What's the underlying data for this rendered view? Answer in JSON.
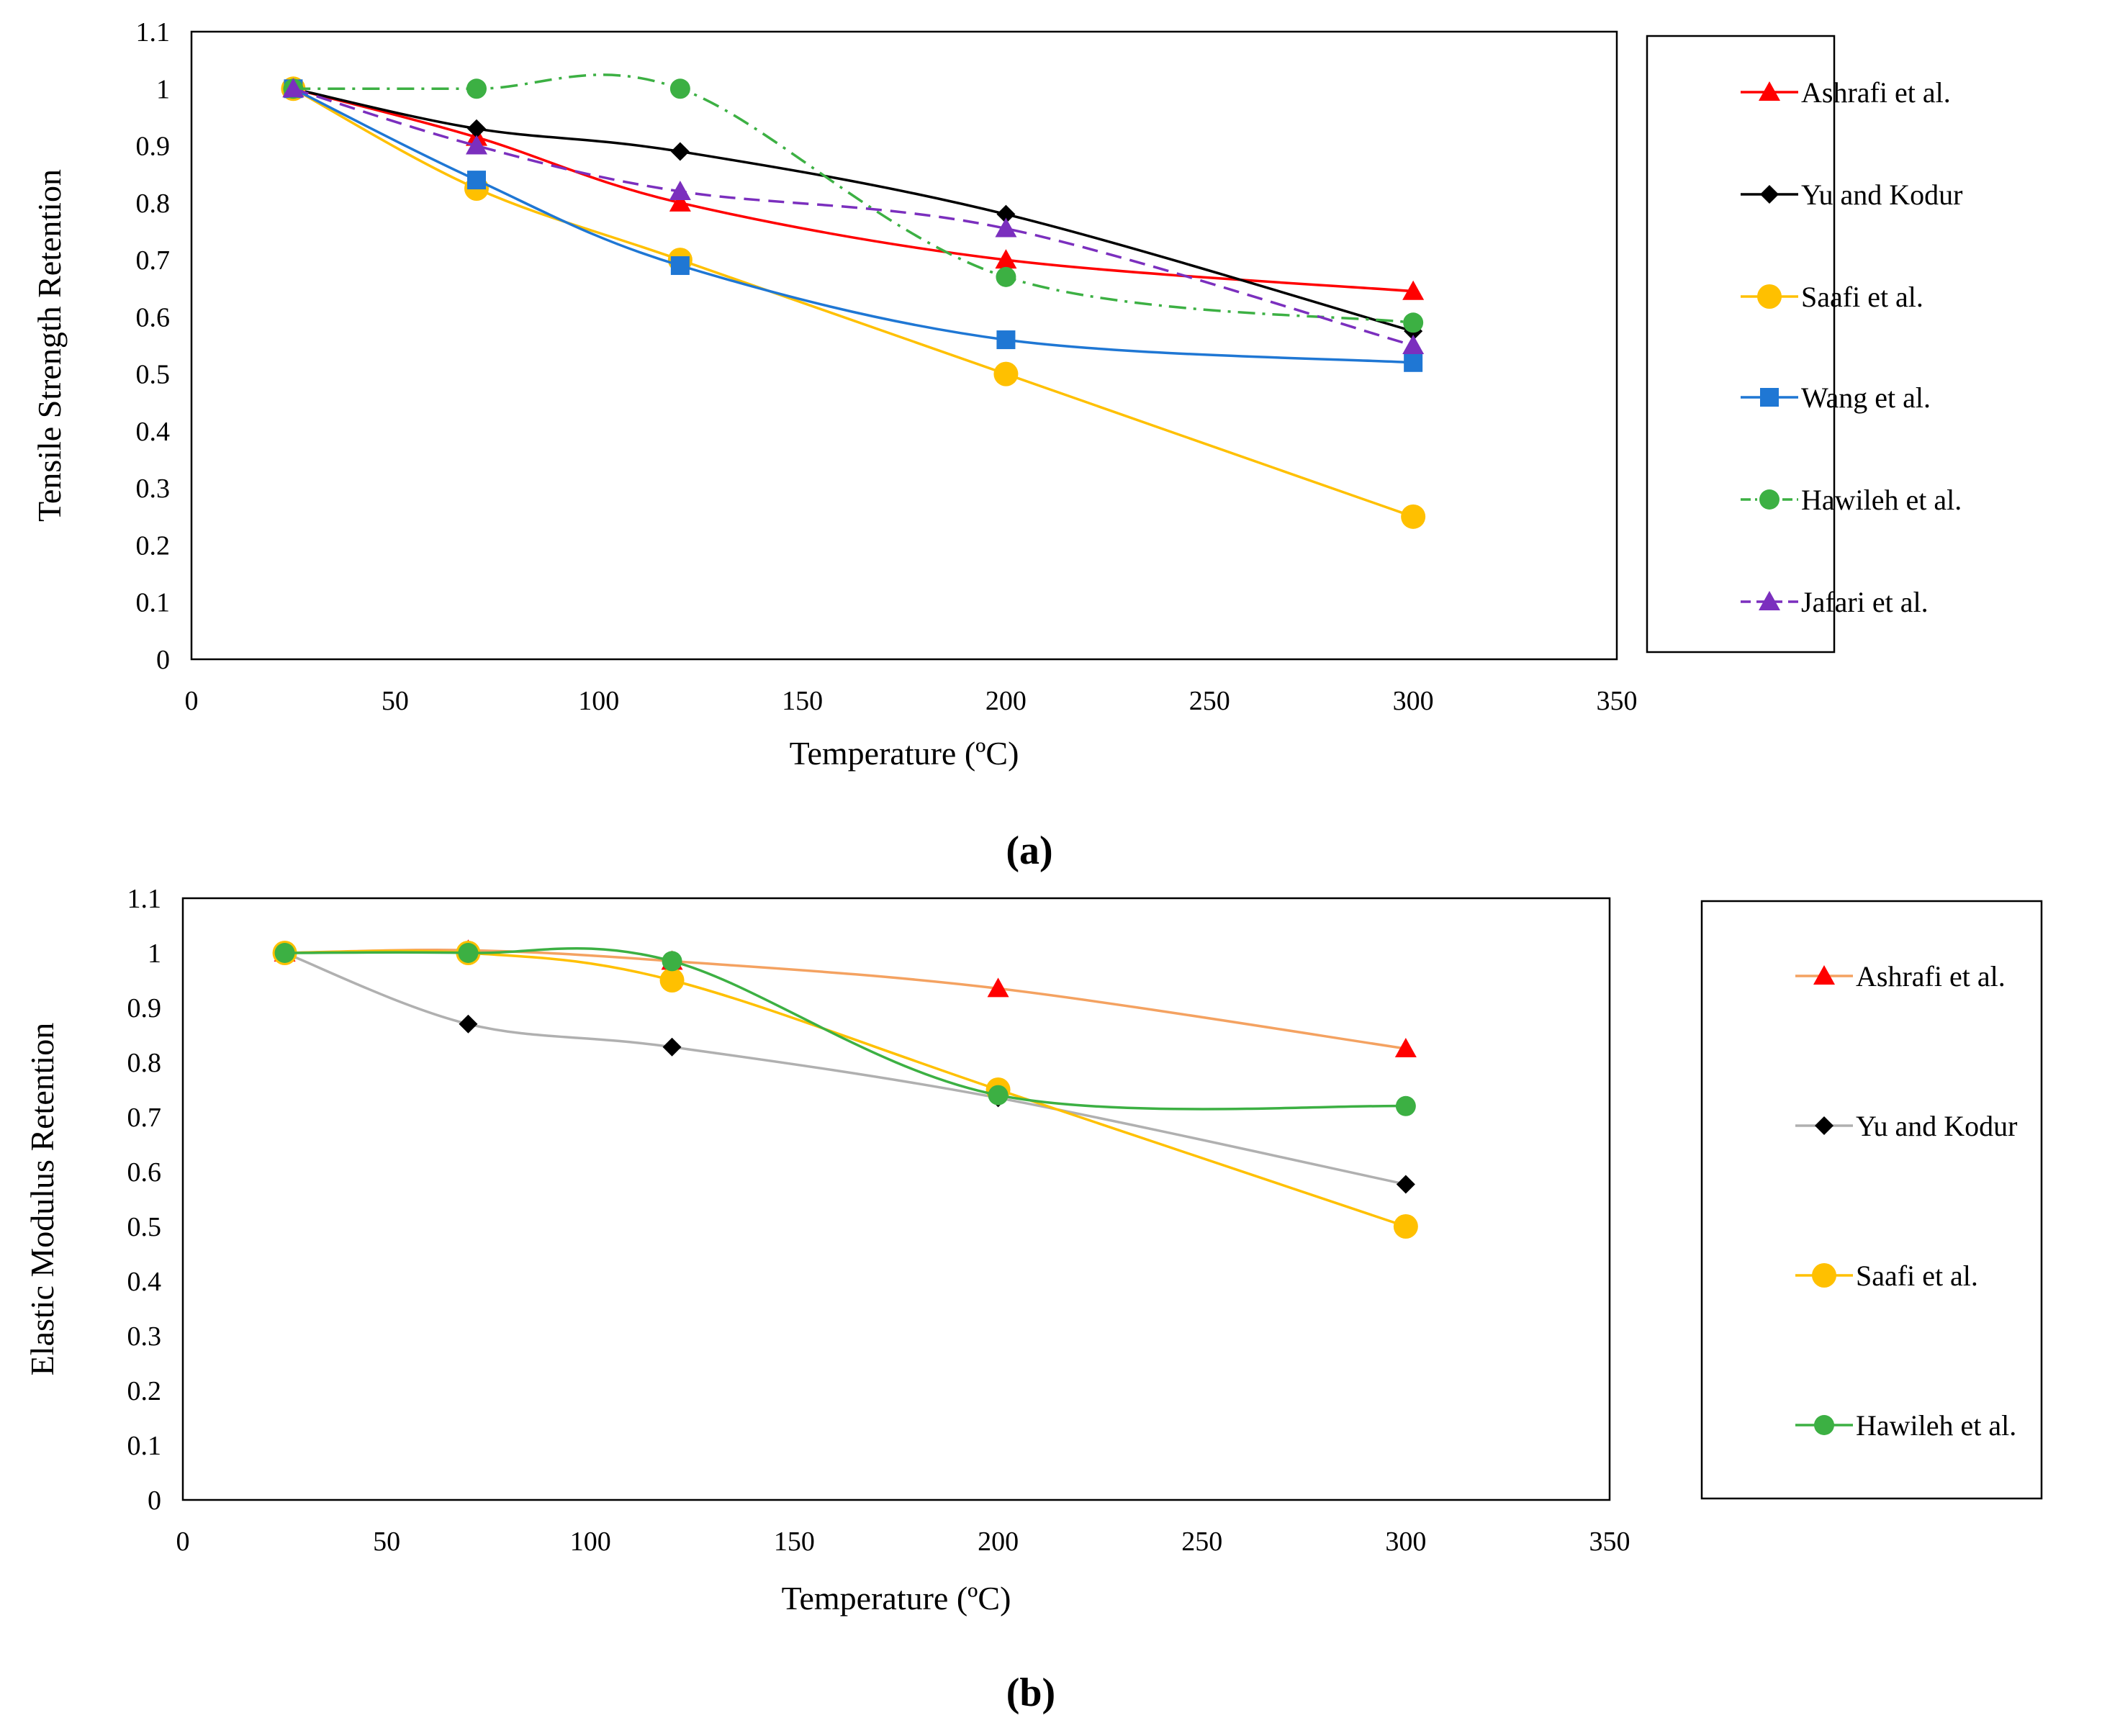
{
  "chart_data": [
    {
      "type": "line",
      "panel_label": "(a)",
      "xlabel": "Temperature (ºC)",
      "ylabel": "Tensile Strength Retention",
      "xlim": [
        0,
        350
      ],
      "ylim": [
        0,
        1.1
      ],
      "xticks": [
        0,
        50,
        100,
        150,
        200,
        250,
        300,
        350
      ],
      "yticks": [
        0,
        0.1,
        0.2,
        0.3,
        0.4,
        0.5,
        0.6,
        0.7,
        0.8,
        0.9,
        1,
        1.1
      ],
      "xtick_labels": [
        "0",
        "50",
        "100",
        "150",
        "200",
        "250",
        "300",
        "350"
      ],
      "ytick_labels": [
        "0",
        "0.1",
        "0.2",
        "0.3",
        "0.4",
        "0.5",
        "0.6",
        "0.7",
        "0.8",
        "0.9",
        "1",
        "1.1"
      ],
      "grid": false,
      "legend": "right",
      "series": [
        {
          "name": "Ashrafi et al.",
          "color": "#ff0000",
          "marker": "triangle",
          "dash": "solid",
          "x": [
            25,
            70,
            120,
            200,
            300
          ],
          "y": [
            1.0,
            0.915,
            0.8,
            0.7,
            0.645
          ]
        },
        {
          "name": "Yu and Kodur",
          "color": "#000000",
          "marker": "diamond",
          "dash": "solid",
          "x": [
            25,
            70,
            120,
            200,
            300
          ],
          "y": [
            1.0,
            0.93,
            0.89,
            0.78,
            0.575
          ]
        },
        {
          "name": "Saafi et al.",
          "color": "#ffc000",
          "marker": "circle",
          "dash": "solid",
          "x": [
            25,
            70,
            120,
            200,
            300
          ],
          "y": [
            1.0,
            0.825,
            0.7,
            0.5,
            0.25
          ]
        },
        {
          "name": "Wang et al.",
          "color": "#1f77d4",
          "marker": "square",
          "dash": "solid",
          "x": [
            25,
            70,
            120,
            200,
            300
          ],
          "y": [
            1.0,
            0.84,
            0.69,
            0.56,
            0.52
          ]
        },
        {
          "name": "Hawileh et al.",
          "color": "#3cb043",
          "marker": "circle-small",
          "dash": "dashdot",
          "x": [
            25,
            70,
            120,
            200,
            300
          ],
          "y": [
            1.0,
            1.0,
            1.0,
            0.67,
            0.59
          ]
        },
        {
          "name": "Jafari et al.",
          "color": "#7b2fbe",
          "marker": "triangle",
          "dash": "dashed",
          "x": [
            25,
            70,
            120,
            200,
            300
          ],
          "y": [
            1.0,
            0.9,
            0.82,
            0.755,
            0.55
          ]
        }
      ]
    },
    {
      "type": "line",
      "panel_label": "(b)",
      "xlabel": "Temperature (ºC)",
      "ylabel": "Elastic Modulus Retention",
      "xlim": [
        0,
        350
      ],
      "ylim": [
        0,
        1.1
      ],
      "xticks": [
        0,
        50,
        100,
        150,
        200,
        250,
        300,
        350
      ],
      "yticks": [
        0,
        0.1,
        0.2,
        0.3,
        0.4,
        0.5,
        0.6,
        0.7,
        0.8,
        0.9,
        1,
        1.1
      ],
      "xtick_labels": [
        "0",
        "50",
        "100",
        "150",
        "200",
        "250",
        "300",
        "350"
      ],
      "ytick_labels": [
        "0",
        "0.1",
        "0.2",
        "0.3",
        "0.4",
        "0.5",
        "0.6",
        "0.7",
        "0.8",
        "0.9",
        "1",
        "1.1"
      ],
      "grid": false,
      "legend": "right",
      "series": [
        {
          "name": "Ashrafi et al.",
          "color": "#f4a261",
          "marker_color": "#ff0000",
          "marker": "triangle",
          "dash": "solid",
          "x": [
            25,
            70,
            120,
            200,
            300
          ],
          "y": [
            1.0,
            1.005,
            0.985,
            0.935,
            0.825
          ]
        },
        {
          "name": "Yu and Kodur",
          "color": "#b0b0b0",
          "marker_color": "#000000",
          "marker": "diamond",
          "dash": "solid",
          "x": [
            25,
            70,
            120,
            200,
            300
          ],
          "y": [
            1.0,
            0.87,
            0.828,
            0.735,
            0.577
          ]
        },
        {
          "name": "Saafi et al.",
          "color": "#ffc000",
          "marker_color": "#ffc000",
          "marker": "circle",
          "dash": "solid",
          "x": [
            25,
            70,
            120,
            200,
            300
          ],
          "y": [
            1.0,
            1.0,
            0.95,
            0.75,
            0.5
          ]
        },
        {
          "name": "Hawileh et al.",
          "color": "#3cb043",
          "marker_color": "#3cb043",
          "marker": "circle-small",
          "dash": "solid",
          "x": [
            25,
            70,
            120,
            200,
            300
          ],
          "y": [
            1.0,
            1.0,
            0.985,
            0.74,
            0.72
          ]
        }
      ]
    }
  ]
}
